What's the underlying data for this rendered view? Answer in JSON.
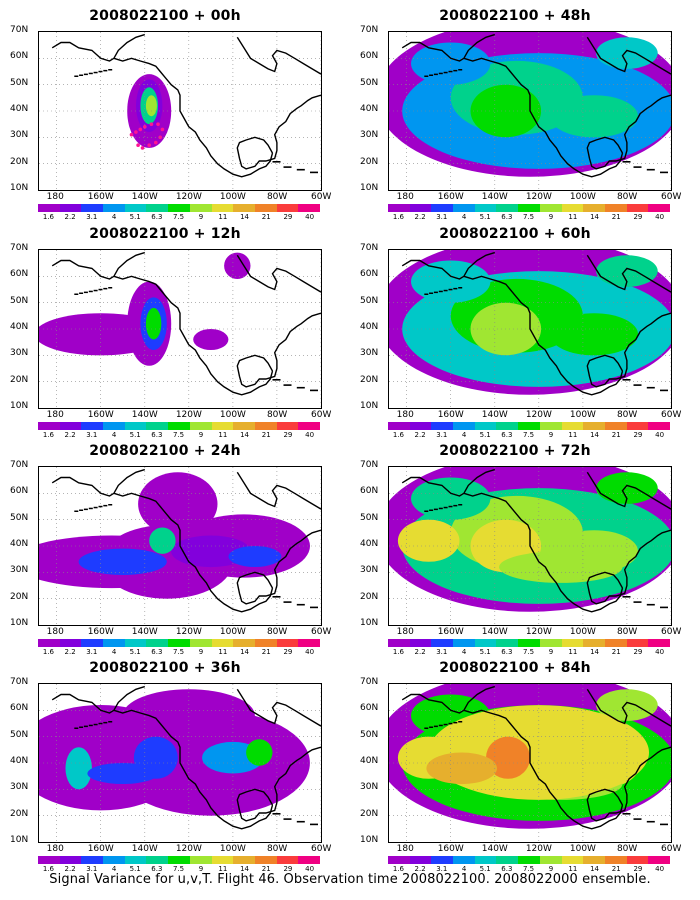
{
  "caption": "Signal Variance for u,v,T. Flight 46. Observation time 2008022100. 2008022000 ensemble.",
  "lat_labels": [
    "70N",
    "60N",
    "50N",
    "40N",
    "30N",
    "20N",
    "10N"
  ],
  "lon_labels": [
    "180",
    "160W",
    "140W",
    "120W",
    "100W",
    "80W",
    "60W"
  ],
  "colorbar": {
    "colors": [
      "#a000c8",
      "#8200dc",
      "#1e3cff",
      "#0096f0",
      "#00c8c8",
      "#00d28c",
      "#00dc00",
      "#a0e632",
      "#e6dc32",
      "#e6af2d",
      "#f08228",
      "#fa3c3c",
      "#f00082"
    ],
    "labels": [
      "1.6",
      "2.2",
      "3.1",
      "4",
      "5.1",
      "6.3",
      "7.5",
      "9",
      "11",
      "14",
      "21",
      "29",
      "40"
    ]
  },
  "panels": [
    {
      "title": "2008022100 + 00h",
      "level": 0
    },
    {
      "title": "2008022100 + 48h",
      "level": 4
    },
    {
      "title": "2008022100 + 12h",
      "level": 1
    },
    {
      "title": "2008022100 + 60h",
      "level": 5
    },
    {
      "title": "2008022100 + 24h",
      "level": 2
    },
    {
      "title": "2008022100 + 72h",
      "level": 6
    },
    {
      "title": "2008022100 + 36h",
      "level": 3
    },
    {
      "title": "2008022100 + 84h",
      "level": 7
    }
  ]
}
